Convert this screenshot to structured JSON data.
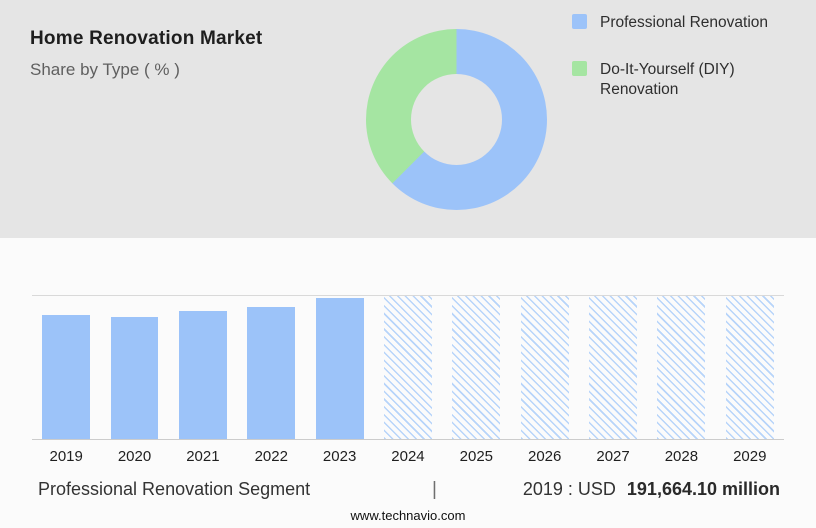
{
  "header": {
    "title": "Home Renovation Market",
    "subtitle": "Share by Type ( % )"
  },
  "legend": {
    "items": [
      {
        "label": "Professional Renovation"
      },
      {
        "label": "Do-It-Yourself (DIY) Renovation"
      }
    ]
  },
  "chart_data": [
    {
      "type": "pie",
      "subtype": "donut",
      "title": "Share by Type ( % )",
      "labels": [
        "Professional Renovation",
        "Do-It-Yourself (DIY) Renovation"
      ],
      "values": [
        62.5,
        37.5
      ],
      "colors": [
        "#9CC3F9",
        "#A5E5A2"
      ],
      "legend_position": "right"
    },
    {
      "type": "bar",
      "title": "Professional Renovation Segment",
      "categories": [
        "2019",
        "2020",
        "2021",
        "2022",
        "2023",
        "2024",
        "2025",
        "2026",
        "2027",
        "2028",
        "2029"
      ],
      "bar_color": "#9CC3F9",
      "hatch_color": "#b7d4fa",
      "y_value_2019_usd_million": 191664.1,
      "bars": [
        {
          "year": "2019",
          "height_pct": 87,
          "style": "solid"
        },
        {
          "year": "2020",
          "height_pct": 85,
          "style": "solid"
        },
        {
          "year": "2021",
          "height_pct": 89.5,
          "style": "solid"
        },
        {
          "year": "2022",
          "height_pct": 92.5,
          "style": "solid"
        },
        {
          "year": "2023",
          "height_pct": 98.5,
          "style": "solid"
        },
        {
          "year": "2024",
          "height_pct": 100,
          "style": "hatched"
        },
        {
          "year": "2025",
          "height_pct": 100,
          "style": "hatched"
        },
        {
          "year": "2026",
          "height_pct": 100,
          "style": "hatched"
        },
        {
          "year": "2027",
          "height_pct": 100,
          "style": "hatched"
        },
        {
          "year": "2028",
          "height_pct": 100,
          "style": "hatched"
        },
        {
          "year": "2029",
          "height_pct": 100,
          "style": "hatched"
        }
      ]
    }
  ],
  "caption": {
    "left": "Professional Renovation Segment",
    "separator": "|",
    "right_prefix": "2019 : USD",
    "right_value": "191,664.10 million"
  },
  "footer": {
    "website": "www.technavio.com"
  }
}
